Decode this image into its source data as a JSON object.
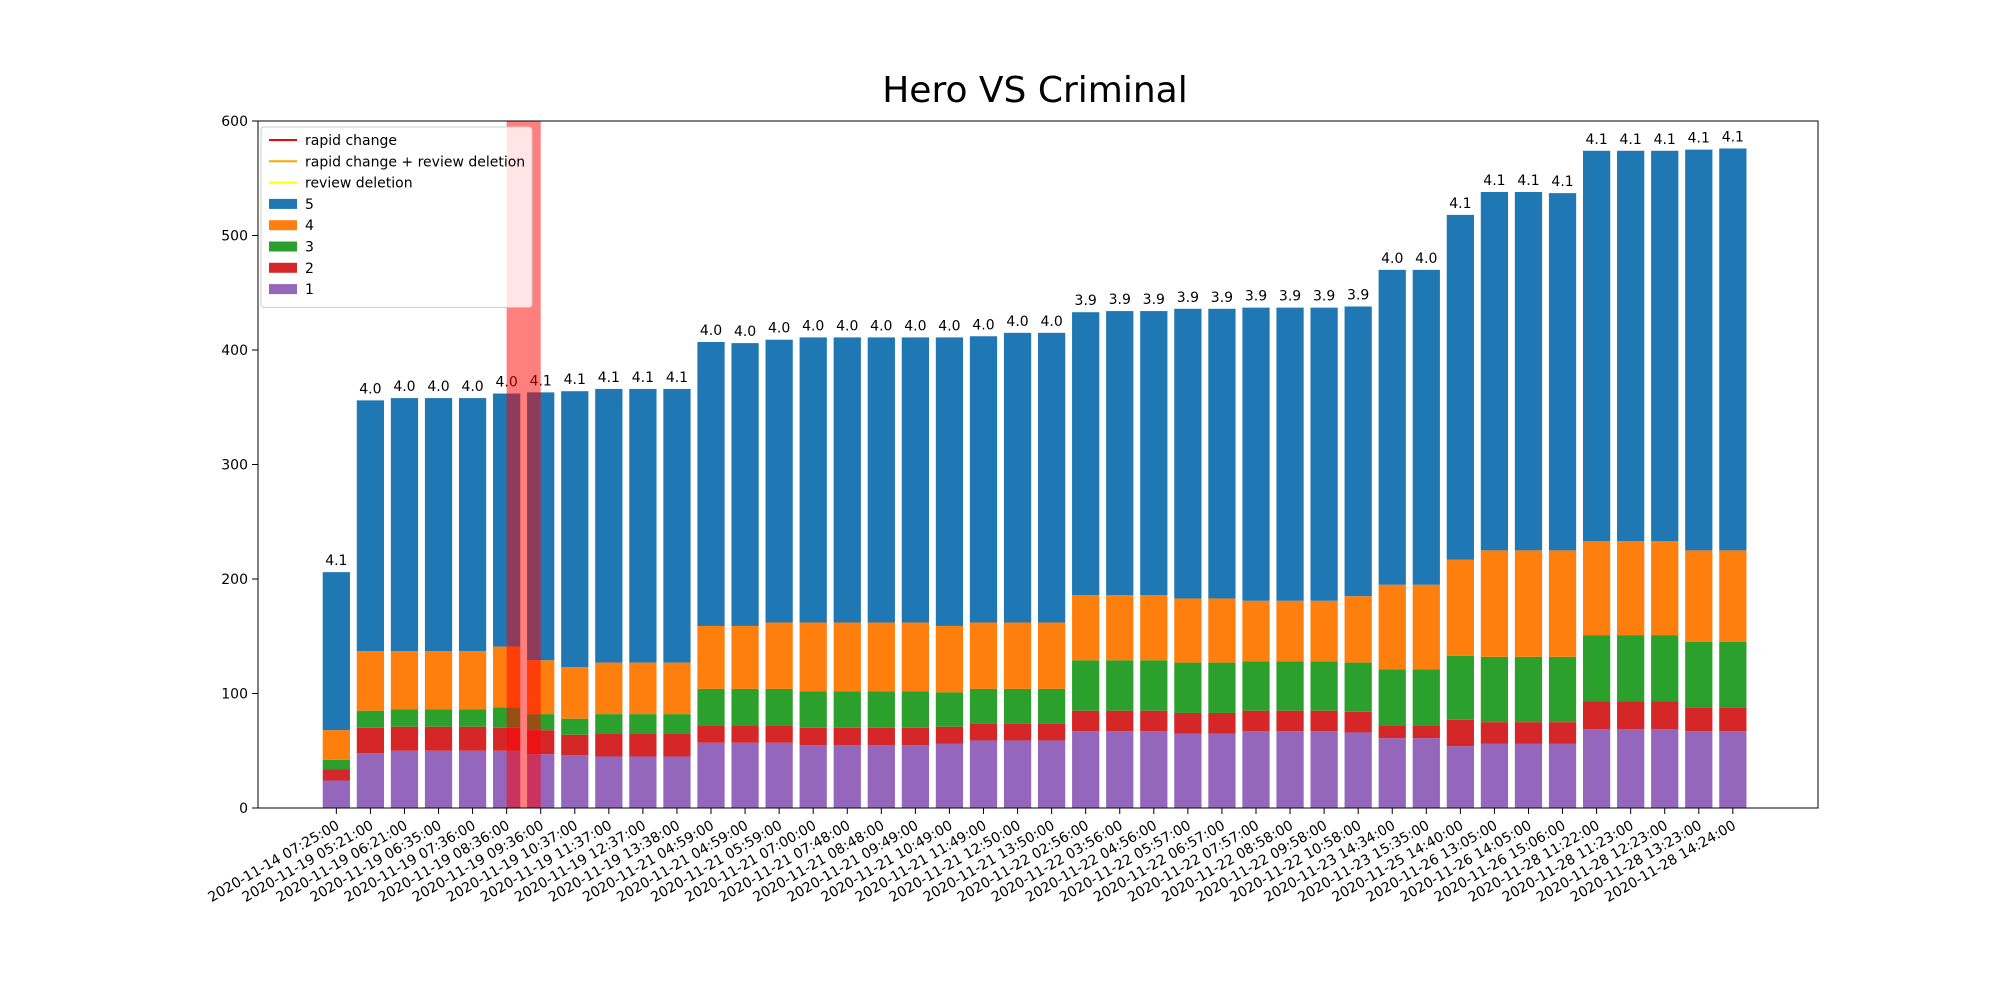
{
  "chart_data": {
    "type": "bar",
    "stacked": true,
    "title": "Hero VS Criminal",
    "categories": [
      "2020-11-14 07:25:00",
      "2020-11-19 05:21:00",
      "2020-11-19 06:21:00",
      "2020-11-19 06:35:00",
      "2020-11-19 07:36:00",
      "2020-11-19 08:36:00",
      "2020-11-19 09:36:00",
      "2020-11-19 10:37:00",
      "2020-11-19 11:37:00",
      "2020-11-19 12:37:00",
      "2020-11-19 13:38:00",
      "2020-11-21 04:59:00",
      "2020-11-21 04:59:00",
      "2020-11-21 05:59:00",
      "2020-11-21 07:00:00",
      "2020-11-21 07:48:00",
      "2020-11-21 08:48:00",
      "2020-11-21 09:49:00",
      "2020-11-21 10:49:00",
      "2020-11-21 11:49:00",
      "2020-11-21 12:50:00",
      "2020-11-21 13:50:00",
      "2020-11-22 02:56:00",
      "2020-11-22 03:56:00",
      "2020-11-22 04:56:00",
      "2020-11-22 05:57:00",
      "2020-11-22 06:57:00",
      "2020-11-22 07:57:00",
      "2020-11-22 08:58:00",
      "2020-11-22 09:58:00",
      "2020-11-22 10:58:00",
      "2020-11-23 14:34:00",
      "2020-11-23 15:35:00",
      "2020-11-25 14:40:00",
      "2020-11-26 13:05:00",
      "2020-11-26 14:05:00",
      "2020-11-26 15:06:00",
      "2020-11-28 11:22:00",
      "2020-11-28 11:23:00",
      "2020-11-28 12:23:00",
      "2020-11-28 13:23:00",
      "2020-11-28 14:24:00"
    ],
    "series": [
      {
        "name": "5",
        "color": "#1f77b4",
        "values": [
          138,
          219,
          221,
          221,
          221,
          221,
          234,
          241,
          239,
          239,
          239,
          248,
          247,
          247,
          249,
          249,
          249,
          249,
          252,
          250,
          253,
          253,
          247,
          248,
          248,
          253,
          253,
          256,
          256,
          256,
          253,
          275,
          275,
          301,
          313,
          313,
          312,
          341,
          341,
          341,
          350,
          351
        ]
      },
      {
        "name": "4",
        "color": "#ff7f0e",
        "values": [
          26,
          52,
          51,
          51,
          51,
          53,
          47,
          45,
          45,
          45,
          45,
          55,
          55,
          58,
          60,
          60,
          60,
          60,
          58,
          58,
          58,
          58,
          57,
          57,
          57,
          56,
          56,
          53,
          53,
          53,
          58,
          74,
          74,
          84,
          93,
          93,
          93,
          82,
          82,
          82,
          80,
          80
        ]
      },
      {
        "name": "3",
        "color": "#2ca02c",
        "values": [
          8,
          15,
          15,
          15,
          15,
          18,
          14,
          14,
          17,
          17,
          17,
          32,
          32,
          32,
          32,
          32,
          32,
          32,
          30,
          30,
          30,
          30,
          44,
          44,
          44,
          44,
          44,
          43,
          43,
          43,
          43,
          49,
          49,
          56,
          57,
          57,
          57,
          58,
          58,
          58,
          57,
          57
        ]
      },
      {
        "name": "2",
        "color": "#d62728",
        "values": [
          10,
          22,
          21,
          21,
          21,
          20,
          21,
          18,
          20,
          20,
          20,
          15,
          15,
          15,
          15,
          15,
          15,
          15,
          15,
          15,
          15,
          15,
          18,
          18,
          18,
          18,
          18,
          18,
          18,
          18,
          18,
          11,
          11,
          23,
          19,
          19,
          19,
          24,
          24,
          24,
          21,
          21
        ]
      },
      {
        "name": "1",
        "color": "#9467bd",
        "values": [
          24,
          48,
          50,
          50,
          50,
          50,
          47,
          46,
          45,
          45,
          45,
          57,
          57,
          57,
          55,
          55,
          55,
          55,
          56,
          59,
          59,
          59,
          67,
          67,
          67,
          65,
          65,
          67,
          67,
          67,
          66,
          61,
          61,
          54,
          56,
          56,
          56,
          69,
          69,
          69,
          67,
          67
        ]
      }
    ],
    "averages": [
      4.1,
      4,
      4,
      4,
      4,
      4,
      4.1,
      4.1,
      4.1,
      4.1,
      4.1,
      4,
      4,
      4,
      4,
      4,
      4,
      4,
      4,
      4,
      4,
      4,
      3.9,
      3.9,
      3.9,
      3.9,
      3.9,
      3.9,
      3.9,
      3.9,
      3.9,
      4,
      4,
      4.1,
      4.1,
      4.1,
      4.1,
      4.1,
      4.1,
      4.1,
      4.1,
      4.1
    ],
    "average_labels": [
      "4.1",
      "4.0",
      "4.0",
      "4.0",
      "4.0",
      "4.0",
      "4.1",
      "4.1",
      "4.1",
      "4.1",
      "4.1",
      "4.0",
      "4.0",
      "4.0",
      "4.0",
      "4.0",
      "4.0",
      "4.0",
      "4.0",
      "4.0",
      "4.0",
      "4.0",
      "3.9",
      "3.9",
      "3.9",
      "3.9",
      "3.9",
      "3.9",
      "3.9",
      "3.9",
      "3.9",
      "4.0",
      "4.0",
      "4.1",
      "4.1",
      "4.1",
      "4.1",
      "4.1",
      "4.1",
      "4.1",
      "4.1",
      "4.1"
    ],
    "markers": [
      {
        "name": "rapid change",
        "color": "red"
      },
      {
        "name": "rapid change + review deletion",
        "color": "orange"
      },
      {
        "name": "review deletion",
        "color": "yellow"
      }
    ],
    "highlights": [
      {
        "start": "2020-11-19 08:36:00",
        "end": "2020-11-19 09:36:00",
        "color": "red"
      }
    ],
    "ylim": [
      0,
      600
    ],
    "yticks": [
      0,
      100,
      200,
      300,
      400,
      500,
      600
    ],
    "legend": "upper left"
  }
}
